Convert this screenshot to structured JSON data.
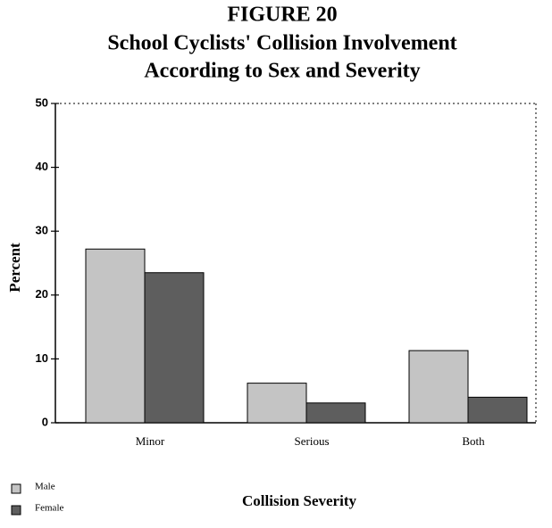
{
  "chart_data": {
    "type": "bar",
    "figure": "FIGURE 20",
    "title": [
      "School Cyclists' Collision Involvement",
      "According to Sex and Severity"
    ],
    "x_label": "Collision Severity",
    "y_label": "Percent",
    "categories": [
      "Minor",
      "Serious",
      "Both"
    ],
    "series": [
      {
        "name": "Male",
        "color": "#c4c4c4",
        "values": [
          27.2,
          6.2,
          11.3
        ]
      },
      {
        "name": "Female",
        "color": "#5e5e5e",
        "values": [
          23.5,
          3.1,
          4.0
        ]
      }
    ],
    "ylim": [
      0,
      50
    ],
    "yticks": [
      0,
      10,
      20,
      30,
      40,
      50
    ],
    "legend": "bottom-left"
  }
}
